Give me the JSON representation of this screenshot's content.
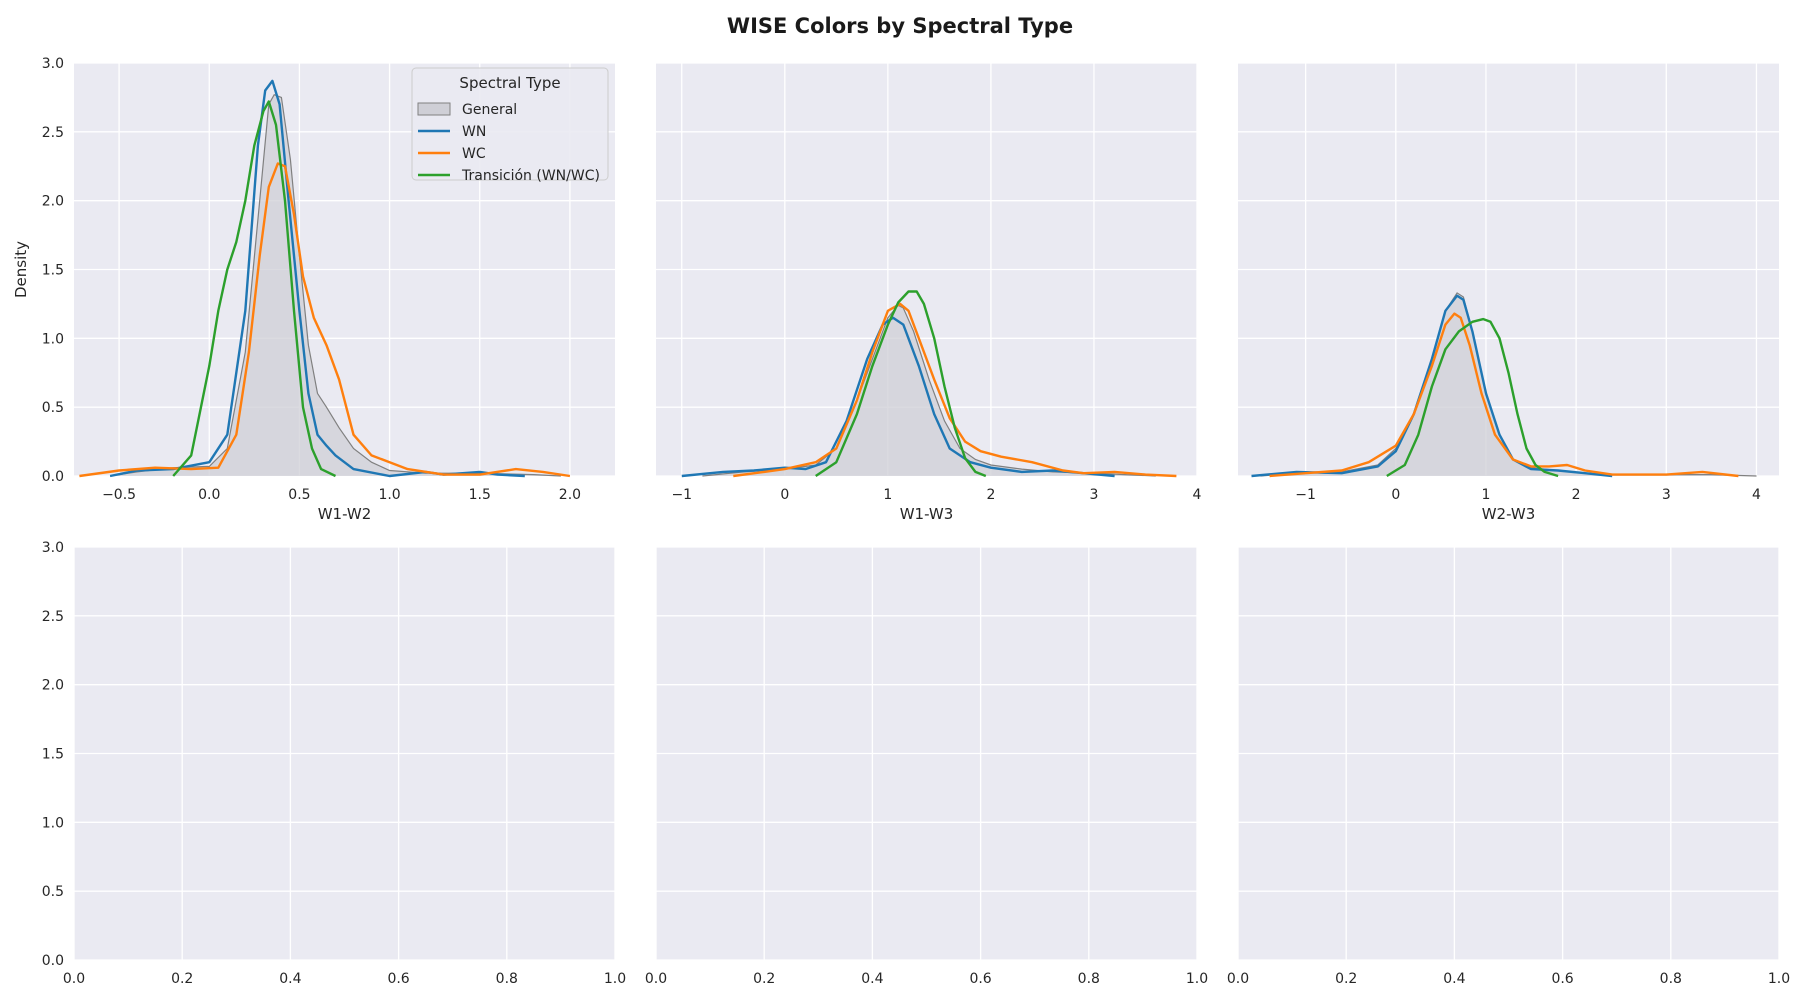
{
  "figure": {
    "title": "WISE Colors by Spectral Type"
  },
  "legend": {
    "title": "Spectral Type",
    "entries": [
      {
        "label": "General",
        "kind": "fill"
      },
      {
        "label": "WN",
        "kind": "line"
      },
      {
        "label": "WC",
        "kind": "line"
      },
      {
        "label": "Transición (WN/WC)",
        "kind": "line"
      }
    ]
  },
  "colors": {
    "background": "#eaeaf2",
    "grid": "#ffffff",
    "general_fill": "#cfcfd6",
    "general_line": "#808080",
    "WN": "#1f77b4",
    "WC": "#ff7f0e",
    "transition": "#2ca02c"
  },
  "chart_data": [
    {
      "type": "line",
      "panel": "top-left",
      "xlabel": "W1-W2",
      "ylabel": "Density",
      "xlim": [
        -0.75,
        2.25
      ],
      "ylim": [
        0,
        3.0
      ],
      "xticks": [
        -0.5,
        0.0,
        0.5,
        1.0,
        1.5,
        2.0
      ],
      "xtick_labels": [
        "−0.5",
        "0.0",
        "0.5",
        "1.0",
        "1.5",
        "2.0"
      ],
      "yticks": [
        0,
        0.5,
        1.0,
        1.5,
        2.0,
        2.5,
        3.0
      ],
      "ytick_labels": [
        "0.0",
        "0.5",
        "1.0",
        "1.5",
        "2.0",
        "2.5",
        "3.0"
      ],
      "show_legend": true,
      "legend_position": "top-right",
      "series": [
        {
          "name": "General",
          "color_key": "general_line",
          "filled": true,
          "x": [
            -0.55,
            -0.4,
            -0.2,
            0.0,
            0.1,
            0.2,
            0.28,
            0.33,
            0.36,
            0.4,
            0.45,
            0.5,
            0.55,
            0.6,
            0.65,
            0.72,
            0.8,
            0.9,
            1.0,
            1.2,
            1.5,
            1.8,
            1.95
          ],
          "y": [
            0.0,
            0.03,
            0.06,
            0.07,
            0.2,
            0.9,
            2.0,
            2.7,
            2.77,
            2.75,
            2.3,
            1.6,
            0.95,
            0.6,
            0.5,
            0.35,
            0.2,
            0.1,
            0.04,
            0.02,
            0.02,
            0.01,
            0.0
          ]
        },
        {
          "name": "WN",
          "color_key": "WN",
          "filled": false,
          "x": [
            -0.55,
            -0.4,
            -0.2,
            0.0,
            0.1,
            0.2,
            0.27,
            0.31,
            0.35,
            0.39,
            0.44,
            0.5,
            0.55,
            0.6,
            0.65,
            0.7,
            0.8,
            1.0,
            1.2,
            1.3,
            1.5,
            1.6,
            1.75
          ],
          "y": [
            0.0,
            0.04,
            0.05,
            0.1,
            0.3,
            1.2,
            2.4,
            2.8,
            2.87,
            2.7,
            2.0,
            1.2,
            0.6,
            0.3,
            0.22,
            0.15,
            0.05,
            0.0,
            0.03,
            0.01,
            0.03,
            0.01,
            0.0
          ]
        },
        {
          "name": "WC",
          "color_key": "WC",
          "filled": false,
          "x": [
            -0.72,
            -0.5,
            -0.3,
            -0.1,
            0.05,
            0.15,
            0.22,
            0.28,
            0.33,
            0.38,
            0.42,
            0.47,
            0.52,
            0.58,
            0.65,
            0.72,
            0.8,
            0.9,
            1.0,
            1.1,
            1.3,
            1.5,
            1.7,
            1.85,
            2.0
          ],
          "y": [
            0.0,
            0.04,
            0.06,
            0.05,
            0.06,
            0.3,
            0.9,
            1.6,
            2.1,
            2.27,
            2.25,
            1.9,
            1.45,
            1.15,
            0.95,
            0.7,
            0.3,
            0.15,
            0.1,
            0.05,
            0.01,
            0.01,
            0.05,
            0.03,
            0.0
          ]
        },
        {
          "name": "Transición (WN/WC)",
          "color_key": "transition",
          "filled": false,
          "x": [
            -0.2,
            -0.1,
            0.0,
            0.05,
            0.1,
            0.15,
            0.2,
            0.25,
            0.3,
            0.33,
            0.37,
            0.42,
            0.47,
            0.52,
            0.57,
            0.62,
            0.7
          ],
          "y": [
            0.0,
            0.15,
            0.8,
            1.2,
            1.5,
            1.7,
            2.0,
            2.4,
            2.65,
            2.72,
            2.55,
            2.0,
            1.2,
            0.5,
            0.2,
            0.05,
            0.0
          ]
        }
      ]
    },
    {
      "type": "line",
      "panel": "top-middle",
      "xlabel": "W1-W3",
      "ylabel": "",
      "xlim": [
        -1.25,
        4.0
      ],
      "ylim": [
        0,
        3.0
      ],
      "xticks": [
        -1,
        0,
        1,
        2,
        3,
        4
      ],
      "xtick_labels": [
        "−1",
        "0",
        "1",
        "2",
        "3",
        "4"
      ],
      "yticks": [
        0,
        0.5,
        1.0,
        1.5,
        2.0,
        2.5,
        3.0
      ],
      "ytick_labels": [],
      "show_legend": false,
      "series": [
        {
          "name": "General",
          "color_key": "general_line",
          "filled": true,
          "x": [
            -0.8,
            -0.4,
            0.0,
            0.3,
            0.5,
            0.7,
            0.85,
            1.0,
            1.1,
            1.15,
            1.25,
            1.4,
            1.55,
            1.7,
            1.85,
            2.0,
            2.3,
            2.6,
            3.0,
            3.3,
            3.6
          ],
          "y": [
            0.0,
            0.03,
            0.05,
            0.08,
            0.2,
            0.55,
            0.85,
            1.15,
            1.24,
            1.22,
            1.05,
            0.7,
            0.4,
            0.2,
            0.12,
            0.08,
            0.05,
            0.03,
            0.02,
            0.01,
            0.0
          ]
        },
        {
          "name": "WN",
          "color_key": "WN",
          "filled": false,
          "x": [
            -1.0,
            -0.6,
            -0.3,
            0.0,
            0.2,
            0.4,
            0.6,
            0.8,
            0.95,
            1.05,
            1.15,
            1.3,
            1.45,
            1.6,
            1.8,
            2.0,
            2.3,
            2.6,
            2.9,
            3.2
          ],
          "y": [
            0.0,
            0.03,
            0.04,
            0.06,
            0.05,
            0.1,
            0.4,
            0.85,
            1.1,
            1.15,
            1.1,
            0.8,
            0.45,
            0.2,
            0.1,
            0.06,
            0.03,
            0.04,
            0.02,
            0.0
          ]
        },
        {
          "name": "WC",
          "color_key": "WC",
          "filled": false,
          "x": [
            -0.5,
            -0.2,
            0.0,
            0.3,
            0.5,
            0.7,
            0.85,
            1.0,
            1.12,
            1.2,
            1.3,
            1.45,
            1.6,
            1.75,
            1.9,
            2.1,
            2.4,
            2.7,
            2.9,
            3.2,
            3.5,
            3.8
          ],
          "y": [
            0.0,
            0.03,
            0.05,
            0.1,
            0.2,
            0.55,
            0.9,
            1.2,
            1.25,
            1.2,
            1.0,
            0.7,
            0.42,
            0.25,
            0.18,
            0.14,
            0.1,
            0.04,
            0.02,
            0.03,
            0.01,
            0.0
          ]
        },
        {
          "name": "Transición (WN/WC)",
          "color_key": "transition",
          "filled": false,
          "x": [
            0.3,
            0.5,
            0.7,
            0.85,
            1.0,
            1.1,
            1.2,
            1.28,
            1.35,
            1.45,
            1.55,
            1.65,
            1.75,
            1.85,
            1.95
          ],
          "y": [
            0.0,
            0.1,
            0.45,
            0.8,
            1.1,
            1.26,
            1.34,
            1.34,
            1.25,
            1.0,
            0.65,
            0.35,
            0.13,
            0.03,
            0.0
          ]
        }
      ]
    },
    {
      "type": "line",
      "panel": "top-right",
      "xlabel": "W2-W3",
      "ylabel": "",
      "xlim": [
        -1.75,
        4.25
      ],
      "ylim": [
        0,
        3.0
      ],
      "xticks": [
        -1,
        0,
        1,
        2,
        3,
        4
      ],
      "xtick_labels": [
        "−1",
        "0",
        "1",
        "2",
        "3",
        "4"
      ],
      "yticks": [
        0,
        0.5,
        1.0,
        1.5,
        2.0,
        2.5,
        3.0
      ],
      "ytick_labels": [],
      "show_legend": false,
      "series": [
        {
          "name": "General",
          "color_key": "general_line",
          "filled": true,
          "x": [
            -1.5,
            -1.1,
            -0.6,
            -0.2,
            0.0,
            0.2,
            0.4,
            0.55,
            0.68,
            0.75,
            0.85,
            1.0,
            1.15,
            1.3,
            1.5,
            1.8,
            2.1,
            2.5,
            3.0,
            3.5,
            4.0
          ],
          "y": [
            0.0,
            0.02,
            0.03,
            0.08,
            0.2,
            0.45,
            0.85,
            1.2,
            1.33,
            1.3,
            1.05,
            0.6,
            0.3,
            0.12,
            0.06,
            0.04,
            0.02,
            0.01,
            0.01,
            0.01,
            0.0
          ]
        },
        {
          "name": "WN",
          "color_key": "WN",
          "filled": false,
          "x": [
            -1.6,
            -1.1,
            -0.6,
            -0.2,
            0.0,
            0.2,
            0.4,
            0.55,
            0.68,
            0.75,
            0.85,
            1.0,
            1.15,
            1.3,
            1.5,
            1.8,
            2.1,
            2.4
          ],
          "y": [
            0.0,
            0.03,
            0.02,
            0.07,
            0.18,
            0.45,
            0.85,
            1.2,
            1.31,
            1.28,
            1.05,
            0.6,
            0.3,
            0.12,
            0.05,
            0.04,
            0.02,
            0.0
          ]
        },
        {
          "name": "WC",
          "color_key": "WC",
          "filled": false,
          "x": [
            -1.4,
            -1.0,
            -0.6,
            -0.3,
            0.0,
            0.2,
            0.4,
            0.55,
            0.65,
            0.72,
            0.82,
            0.95,
            1.1,
            1.3,
            1.5,
            1.7,
            1.9,
            2.1,
            2.4,
            3.0,
            3.4,
            3.8
          ],
          "y": [
            0.0,
            0.02,
            0.04,
            0.1,
            0.22,
            0.45,
            0.8,
            1.1,
            1.18,
            1.15,
            0.95,
            0.6,
            0.3,
            0.12,
            0.07,
            0.07,
            0.08,
            0.04,
            0.01,
            0.01,
            0.03,
            0.0
          ]
        },
        {
          "name": "Transición (WN/WC)",
          "color_key": "transition",
          "filled": false,
          "x": [
            -0.1,
            0.1,
            0.25,
            0.4,
            0.55,
            0.7,
            0.85,
            0.97,
            1.05,
            1.15,
            1.25,
            1.35,
            1.45,
            1.55,
            1.65,
            1.8
          ],
          "y": [
            0.0,
            0.08,
            0.3,
            0.65,
            0.92,
            1.05,
            1.12,
            1.14,
            1.12,
            1.0,
            0.75,
            0.45,
            0.2,
            0.08,
            0.03,
            0.0
          ]
        }
      ]
    },
    {
      "type": "line",
      "panel": "bottom-left",
      "xlabel": "",
      "ylabel": "",
      "xlim": [
        0,
        1.0
      ],
      "ylim": [
        0,
        3.0
      ],
      "xticks": [
        0.0,
        0.2,
        0.4,
        0.6,
        0.8,
        1.0
      ],
      "xtick_labels": [
        "0.0",
        "0.2",
        "0.4",
        "0.6",
        "0.8",
        "1.0"
      ],
      "yticks": [
        0,
        0.5,
        1.0,
        1.5,
        2.0,
        2.5,
        3.0
      ],
      "ytick_labels": [
        "0.0",
        "0.5",
        "1.0",
        "1.5",
        "2.0",
        "2.5",
        "3.0"
      ],
      "show_legend": false,
      "series": []
    },
    {
      "type": "line",
      "panel": "bottom-middle",
      "xlabel": "",
      "ylabel": "",
      "xlim": [
        0,
        1.0
      ],
      "ylim": [
        0,
        3.0
      ],
      "xticks": [
        0.0,
        0.2,
        0.4,
        0.6,
        0.8,
        1.0
      ],
      "xtick_labels": [
        "0.0",
        "0.2",
        "0.4",
        "0.6",
        "0.8",
        "1.0"
      ],
      "yticks": [
        0,
        0.5,
        1.0,
        1.5,
        2.0,
        2.5,
        3.0
      ],
      "ytick_labels": [],
      "show_legend": false,
      "series": []
    },
    {
      "type": "line",
      "panel": "bottom-right",
      "xlabel": "",
      "ylabel": "",
      "xlim": [
        0,
        1.0
      ],
      "ylim": [
        0,
        3.0
      ],
      "xticks": [
        0.0,
        0.2,
        0.4,
        0.6,
        0.8,
        1.0
      ],
      "xtick_labels": [
        "0.0",
        "0.2",
        "0.4",
        "0.6",
        "0.8",
        "1.0"
      ],
      "yticks": [
        0,
        0.5,
        1.0,
        1.5,
        2.0,
        2.5,
        3.0
      ],
      "ytick_labels": [],
      "show_legend": false,
      "series": []
    }
  ]
}
